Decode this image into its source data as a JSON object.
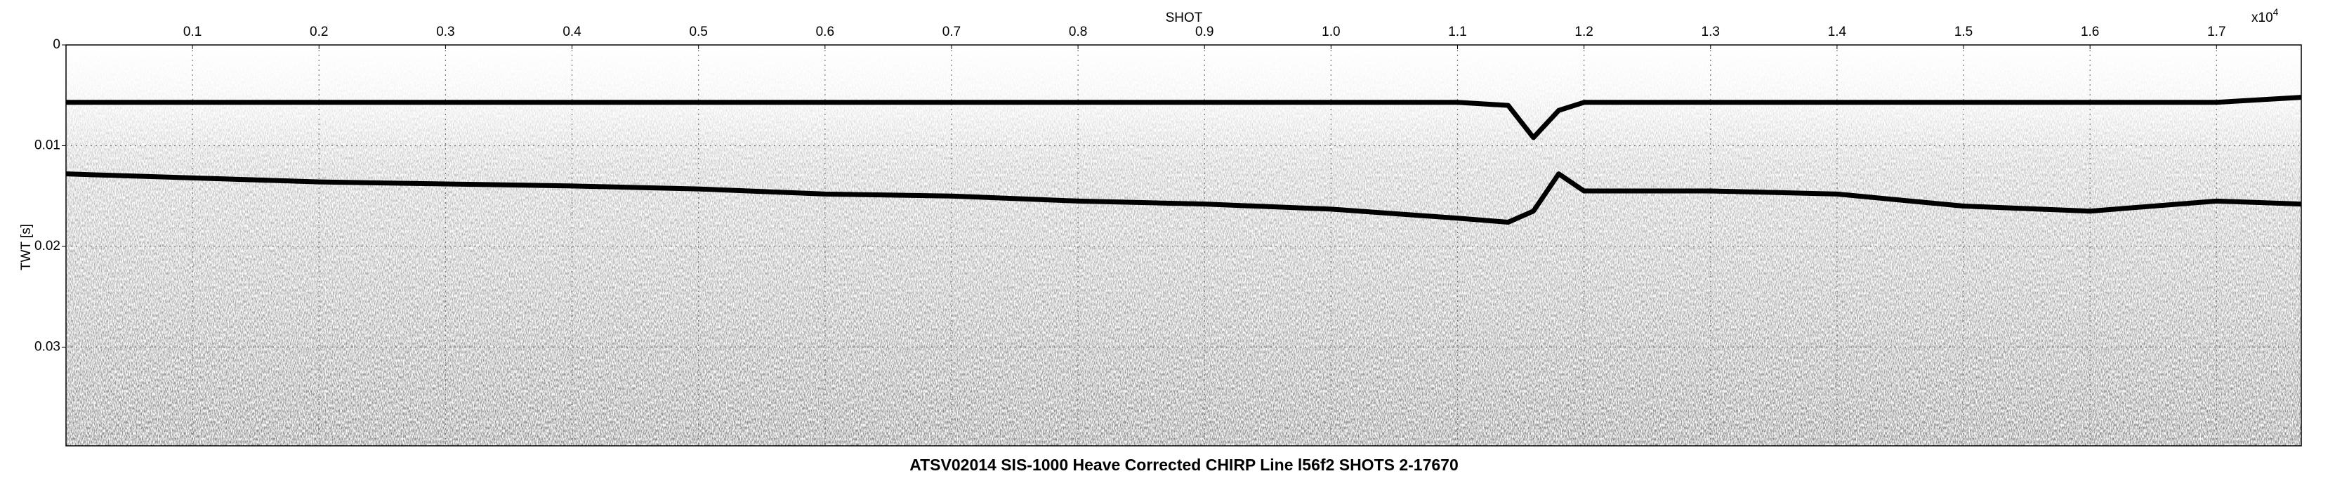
{
  "chart_data": {
    "type": "line",
    "title": "ATSV02014 SIS-1000 Heave Corrected CHIRP Line l56f2 SHOTS 2-17670",
    "x_label": "SHOT",
    "y_label": "TWT [s]",
    "x_multiplier": "x10",
    "x_multiplier_exponent": "4",
    "x": [
      0,
      0.1,
      0.2,
      0.3,
      0.4,
      0.5,
      0.6,
      0.7,
      0.8,
      0.9,
      1.0,
      1.1,
      1.14,
      1.16,
      1.18,
      1.2,
      1.3,
      1.4,
      1.5,
      1.6,
      1.7,
      1.767
    ],
    "series": [
      {
        "color": "#000000",
        "values": [
          0.0057,
          0.0057,
          0.0057,
          0.0057,
          0.0057,
          0.0057,
          0.0057,
          0.0057,
          0.0057,
          0.0057,
          0.0057,
          0.0057,
          0.006,
          0.0092,
          0.0065,
          0.0057,
          0.0057,
          0.0057,
          0.0057,
          0.0057,
          0.0057,
          0.0052
        ]
      },
      {
        "color": "#000000",
        "values": [
          0.0128,
          0.0132,
          0.0136,
          0.0138,
          0.014,
          0.0143,
          0.0148,
          0.015,
          0.0155,
          0.0158,
          0.0163,
          0.0172,
          0.0176,
          0.0165,
          0.0128,
          0.0145,
          0.0145,
          0.0148,
          0.016,
          0.0165,
          0.0155,
          0.0158
        ]
      }
    ],
    "xlim": [
      0,
      1.767
    ],
    "xticks": [
      0.1,
      0.2,
      0.3,
      0.4,
      0.5,
      0.6,
      0.7,
      0.8,
      0.9,
      {
        "value": 1,
        "label": "1.0"
      },
      1.1,
      1.2,
      1.3,
      1.4,
      1.5,
      1.6,
      1.7
    ],
    "ylim": [
      0,
      0.0398
    ],
    "y_inverted": true,
    "yticks": [
      0,
      0.01,
      0.02,
      0.03
    ],
    "grid": true
  }
}
